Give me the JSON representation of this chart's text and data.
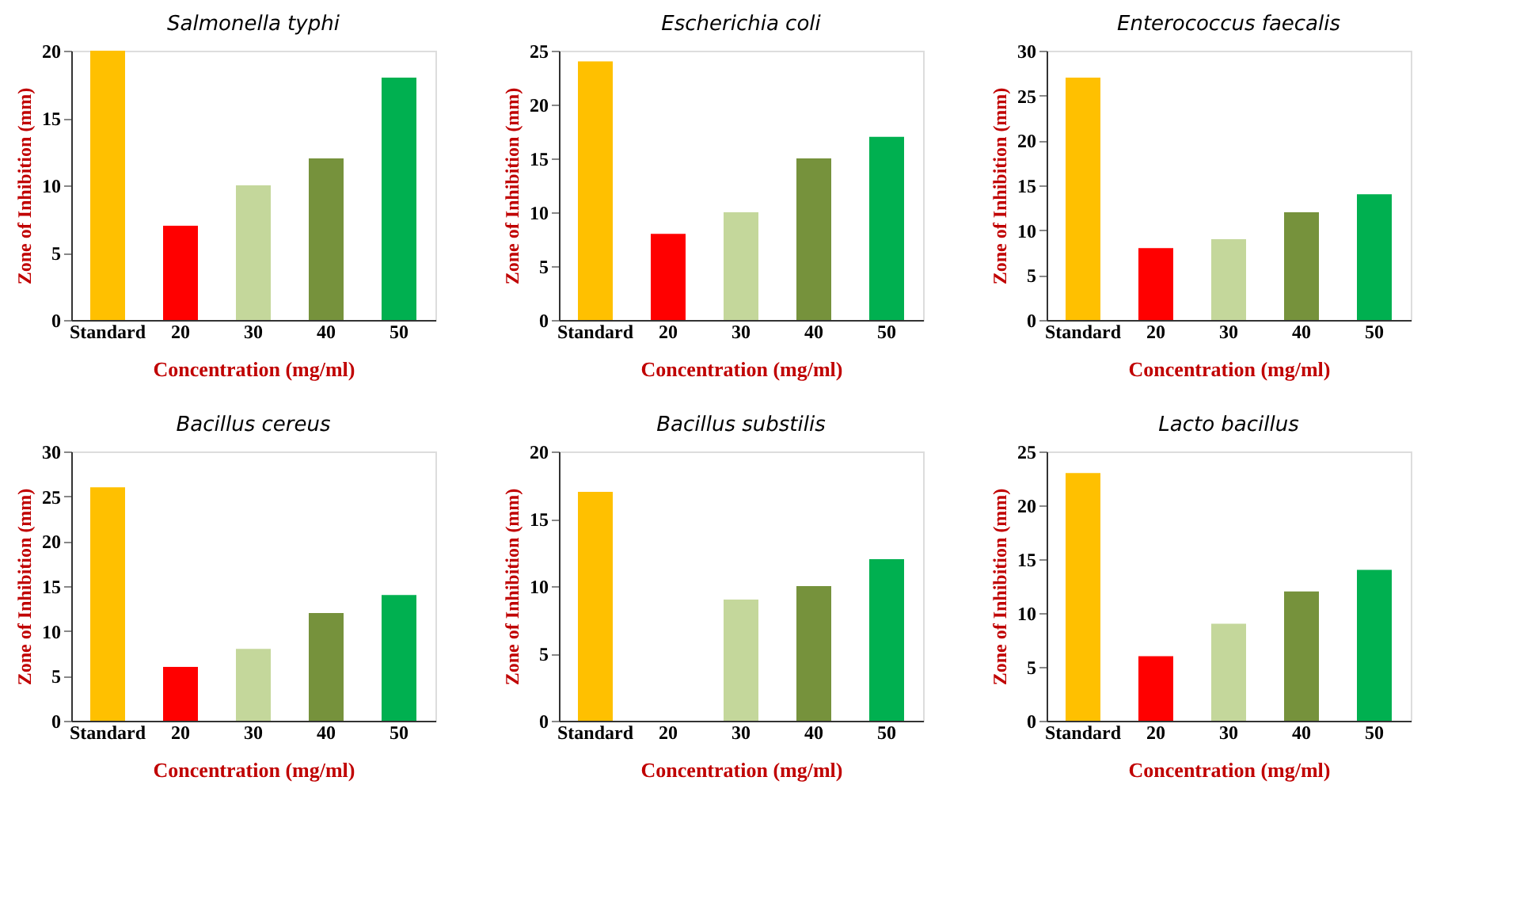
{
  "chart_data": [
    {
      "type": "bar",
      "title": "Salmonella typhi",
      "xlabel": "Concentration (mg/ml)",
      "ylabel": "Zone of Inhibition (mm)",
      "categories": [
        "Standard",
        "20",
        "30",
        "40",
        "50"
      ],
      "values": [
        20,
        7,
        10,
        12,
        18
      ],
      "colors": [
        "#ffc000",
        "#ff0000",
        "#c4d79b",
        "#76923c",
        "#00b050"
      ],
      "ylim": [
        0,
        20
      ],
      "yticks": [
        0,
        5,
        10,
        15,
        20
      ]
    },
    {
      "type": "bar",
      "title": "Escherichia coli",
      "xlabel": "Concentration (mg/ml)",
      "ylabel": "Zone of Inhibition (mm)",
      "categories": [
        "Standard",
        "20",
        "30",
        "40",
        "50"
      ],
      "values": [
        24,
        8,
        10,
        15,
        17
      ],
      "colors": [
        "#ffc000",
        "#ff0000",
        "#c4d79b",
        "#76923c",
        "#00b050"
      ],
      "ylim": [
        0,
        25
      ],
      "yticks": [
        0,
        5,
        10,
        15,
        20,
        25
      ]
    },
    {
      "type": "bar",
      "title": "Enterococcus faecalis",
      "xlabel": "Concentration (mg/ml)",
      "ylabel": "Zone of Inhibition (mm)",
      "categories": [
        "Standard",
        "20",
        "30",
        "40",
        "50"
      ],
      "values": [
        27,
        8,
        9,
        12,
        14
      ],
      "colors": [
        "#ffc000",
        "#ff0000",
        "#c4d79b",
        "#76923c",
        "#00b050"
      ],
      "ylim": [
        0,
        30
      ],
      "yticks": [
        0,
        5,
        10,
        15,
        20,
        25,
        30
      ]
    },
    {
      "type": "bar",
      "title": "Bacillus cereus",
      "xlabel": "Concentration (mg/ml)",
      "ylabel": "Zone of Inhibition (mm)",
      "categories": [
        "Standard",
        "20",
        "30",
        "40",
        "50"
      ],
      "values": [
        26,
        6,
        8,
        12,
        14
      ],
      "colors": [
        "#ffc000",
        "#ff0000",
        "#c4d79b",
        "#76923c",
        "#00b050"
      ],
      "ylim": [
        0,
        30
      ],
      "yticks": [
        0,
        5,
        10,
        15,
        20,
        25,
        30
      ]
    },
    {
      "type": "bar",
      "title": "Bacillus substilis",
      "xlabel": "Concentration (mg/ml)",
      "ylabel": "Zone of Inhibition (mm)",
      "categories": [
        "Standard",
        "20",
        "30",
        "40",
        "50"
      ],
      "values": [
        17,
        0,
        9,
        10,
        12
      ],
      "colors": [
        "#ffc000",
        "#ff0000",
        "#c4d79b",
        "#76923c",
        "#00b050"
      ],
      "ylim": [
        0,
        20
      ],
      "yticks": [
        0,
        5,
        10,
        15,
        20
      ]
    },
    {
      "type": "bar",
      "title": "Lacto bacillus",
      "xlabel": "Concentration (mg/ml)",
      "ylabel": "Zone of Inhibition (mm)",
      "categories": [
        "Standard",
        "20",
        "30",
        "40",
        "50"
      ],
      "values": [
        23,
        6,
        9,
        12,
        14
      ],
      "colors": [
        "#ffc000",
        "#ff0000",
        "#c4d79b",
        "#76923c",
        "#00b050"
      ],
      "ylim": [
        0,
        25
      ],
      "yticks": [
        0,
        5,
        10,
        15,
        20,
        25
      ]
    }
  ]
}
